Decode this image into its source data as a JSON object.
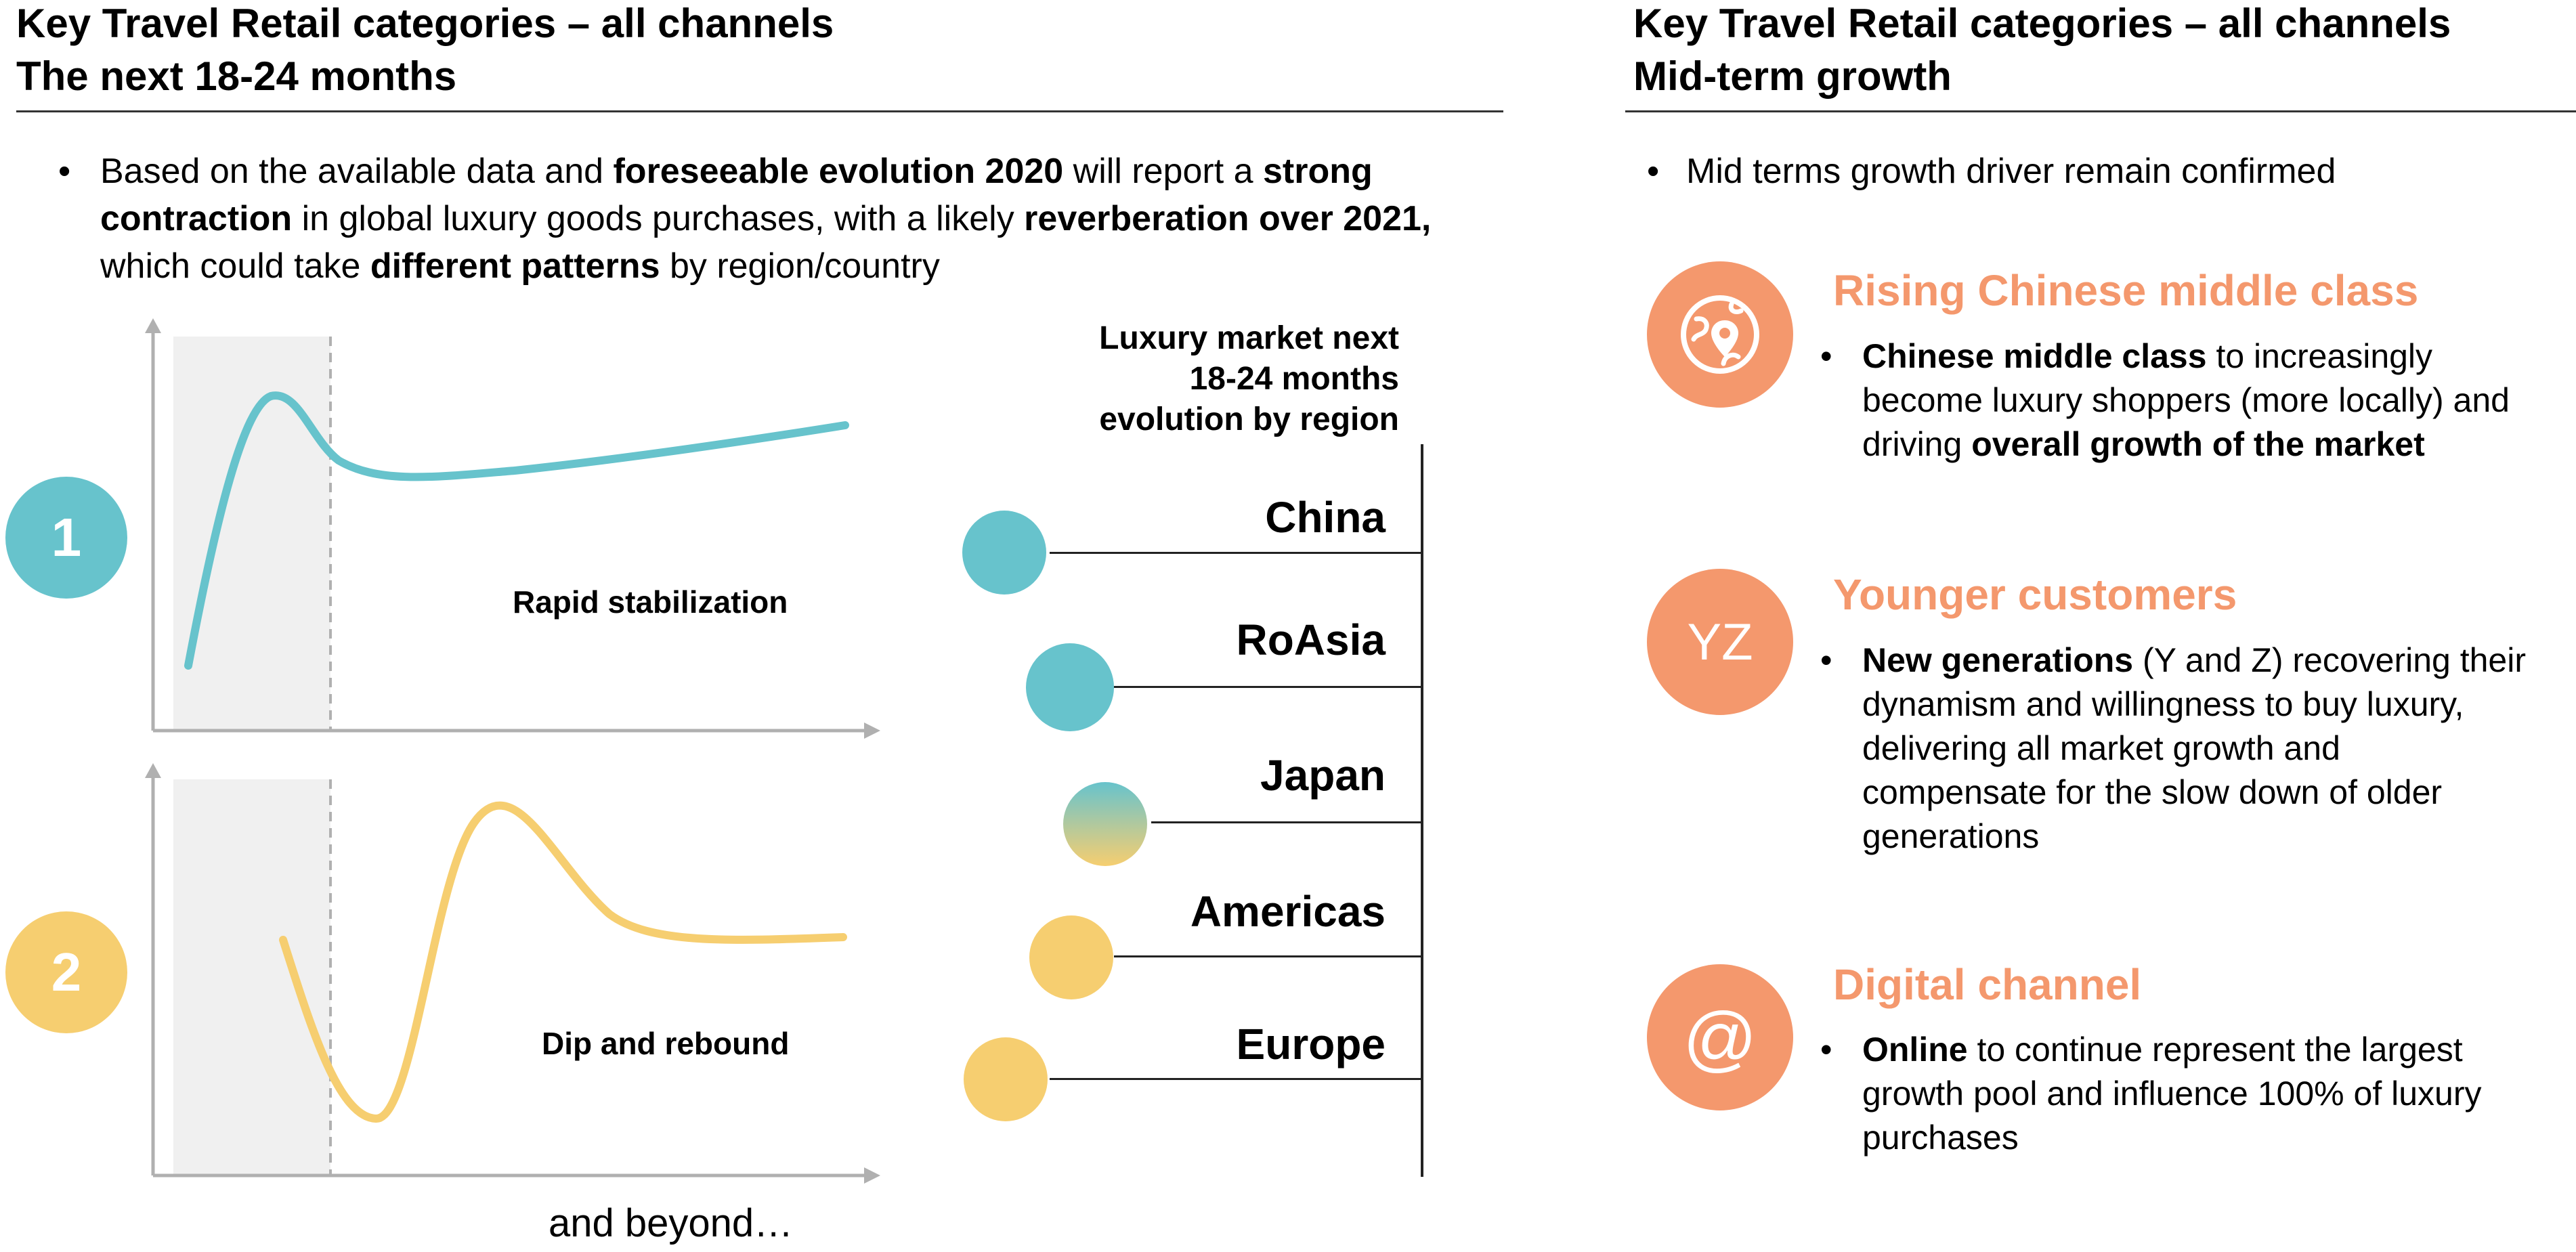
{
  "left": {
    "title_line1": "Key Travel Retail categories – all channels",
    "title_line2": "The next 18-24 months",
    "bullet": {
      "t1": "Based on the available data and ",
      "b1": "foreseeable evolution 2020",
      "t2": " will report a ",
      "b2": "strong contraction",
      "t3": " in global luxury goods purchases, with a likely ",
      "b3": "reverberation over 2021,",
      "t4": " which could take ",
      "b4": "different patterns",
      "t5": " by region/country"
    },
    "scenario1": {
      "badge": "1",
      "caption": "Rapid stabilization",
      "color": "#67C3CC"
    },
    "scenario2": {
      "badge": "2",
      "caption": "Dip and rebound",
      "color": "#F6CE70"
    },
    "footer": "and beyond…",
    "region_panel": {
      "title_line1": "Luxury market next",
      "title_line2": "18-24 months",
      "title_line3": "evolution by region",
      "regions": [
        {
          "name": "China",
          "scenario": "1"
        },
        {
          "name": "RoAsia",
          "scenario": "1"
        },
        {
          "name": "Japan",
          "scenario": "1-2"
        },
        {
          "name": "Americas",
          "scenario": "2"
        },
        {
          "name": "Europe",
          "scenario": "2"
        }
      ]
    }
  },
  "right": {
    "title_line1": "Key Travel Retail categories – all channels",
    "title_line2": "Mid-term growth",
    "bullet": "Mid terms growth driver remain confirmed",
    "accent_color": "#F4986D",
    "drivers": [
      {
        "icon": "globe-location-icon",
        "title": "Rising Chinese middle class",
        "b1": "Chinese middle class",
        "t1": " to increasingly become luxury shoppers (more locally) and driving ",
        "b2": "overall growth of the market",
        "t2": ""
      },
      {
        "icon_text": "YZ",
        "title": "Younger customers",
        "b1": "New generations",
        "t1": " (Y and Z) recovering their dynamism and willingness to buy luxury, delivering all market growth and compensate for the slow down of older generations",
        "b2": "",
        "t2": ""
      },
      {
        "icon_text": "@",
        "title": "Digital channel",
        "b1": "Online",
        "t1": " to continue represent the largest growth pool and influence 100% of luxury purchases",
        "b2": "",
        "t2": ""
      }
    ]
  }
}
